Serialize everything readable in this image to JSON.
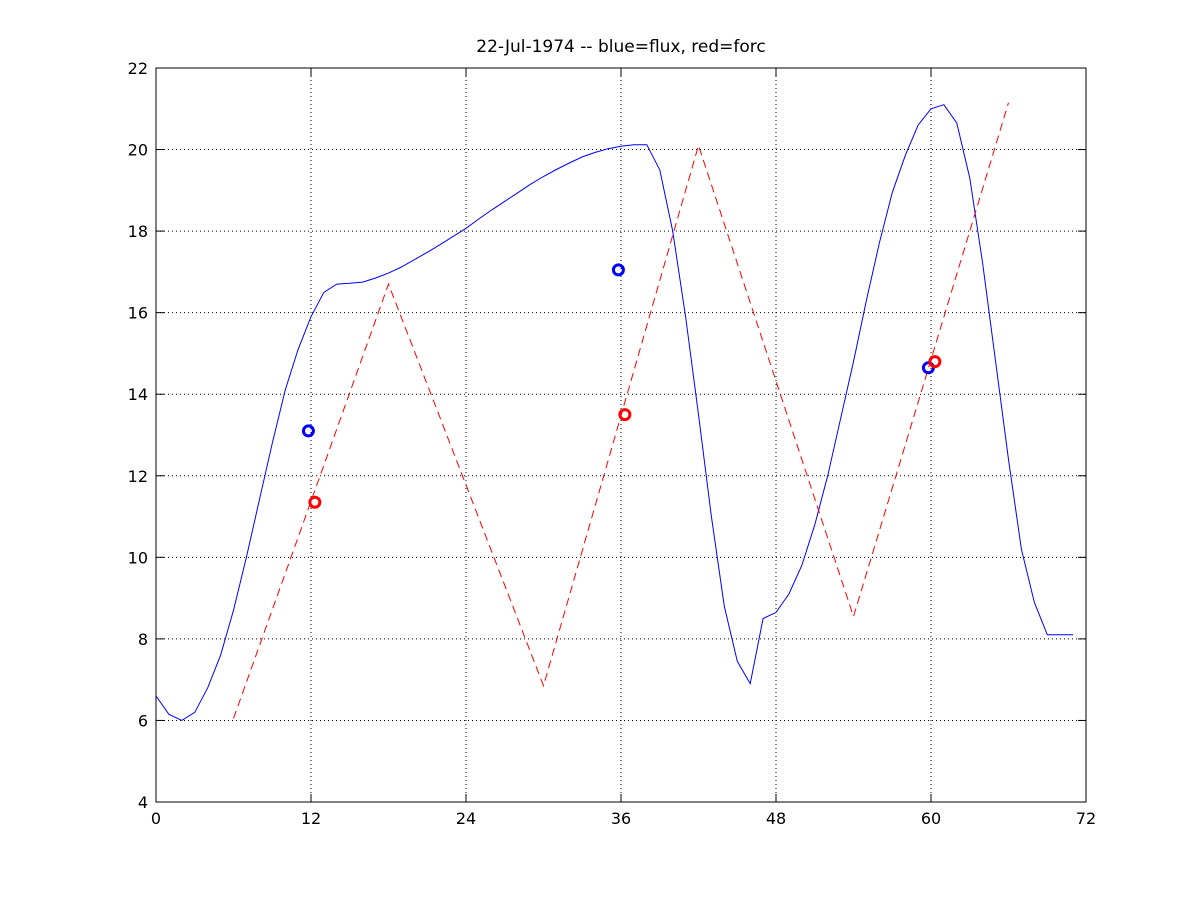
{
  "chart_data": {
    "type": "line",
    "title": "22-Jul-1974 -- blue=flux, red=forc",
    "xlabel": "",
    "ylabel": "",
    "xlim": [
      0,
      72
    ],
    "ylim": [
      4,
      22
    ],
    "xticks": [
      0,
      12,
      24,
      36,
      48,
      60,
      72
    ],
    "yticks": [
      4,
      6,
      8,
      10,
      12,
      14,
      16,
      18,
      20,
      22
    ],
    "xtick_labels": [
      "0",
      "12",
      "24",
      "36",
      "48",
      "60",
      "72"
    ],
    "ytick_labels": [
      "4",
      "6",
      "8",
      "10",
      "12",
      "14",
      "16",
      "18",
      "20",
      "22"
    ],
    "grid": true,
    "legend": "none",
    "series": [
      {
        "color": "#0000ff",
        "style": "solid",
        "x": [
          0,
          1,
          2,
          3,
          4,
          5,
          6,
          7,
          8,
          9,
          10,
          11,
          12,
          13,
          14,
          15,
          16,
          17,
          18,
          19,
          20,
          21,
          22,
          23,
          24,
          25,
          26,
          27,
          28,
          29,
          30,
          31,
          32,
          33,
          34,
          35,
          36,
          37,
          38,
          39,
          40,
          41,
          42,
          43,
          44,
          45,
          46,
          47,
          48,
          49,
          50,
          51,
          52,
          53,
          54,
          55,
          56,
          57,
          58,
          59,
          60,
          61,
          62,
          63,
          64,
          65,
          66,
          67,
          68,
          69,
          70,
          71
        ],
        "y": [
          6.6,
          6.15,
          6.0,
          6.2,
          6.8,
          7.6,
          8.7,
          10.0,
          11.4,
          12.8,
          14.1,
          15.1,
          15.9,
          16.5,
          16.7,
          16.72,
          16.75,
          16.85,
          16.97,
          17.12,
          17.3,
          17.48,
          17.67,
          17.87,
          18.07,
          18.3,
          18.52,
          18.73,
          18.94,
          19.15,
          19.34,
          19.51,
          19.67,
          19.82,
          19.93,
          20.02,
          20.08,
          20.12,
          20.12,
          19.5,
          18.0,
          15.9,
          13.5,
          11.0,
          8.8,
          7.45,
          6.9,
          8.5,
          8.65,
          9.1,
          9.8,
          10.8,
          12.0,
          13.4,
          14.8,
          16.3,
          17.7,
          18.95,
          19.85,
          20.6,
          21.0,
          21.1,
          20.65,
          19.3,
          17.2,
          14.8,
          12.4,
          10.2,
          8.9,
          8.1,
          8.1,
          8.1
        ]
      },
      {
        "color": "#ff0000",
        "style": "dashed",
        "x": [
          6,
          18,
          30,
          42,
          54,
          66
        ],
        "y": [
          6.05,
          16.7,
          6.85,
          20.1,
          8.55,
          21.15
        ]
      }
    ],
    "markers": [
      {
        "color": "#0000ff",
        "x": 11.8,
        "y": 13.1
      },
      {
        "color": "#ff0000",
        "x": 12.3,
        "y": 11.35
      },
      {
        "color": "#0000ff",
        "x": 35.8,
        "y": 17.05
      },
      {
        "color": "#ff0000",
        "x": 36.3,
        "y": 13.5
      },
      {
        "color": "#0000ff",
        "x": 59.8,
        "y": 14.65
      },
      {
        "color": "#ff0000",
        "x": 60.3,
        "y": 14.8
      }
    ]
  }
}
